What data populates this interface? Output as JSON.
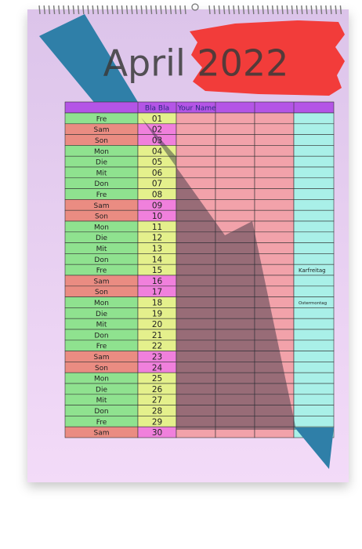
{
  "title": "April 2022",
  "table": {
    "header": [
      "Bla Bla",
      "Your Name"
    ],
    "rows": [
      {
        "day": "Fre",
        "date": "01"
      },
      {
        "day": "Sam",
        "date": "02",
        "weekend": true
      },
      {
        "day": "Son",
        "date": "03",
        "weekend": true
      },
      {
        "day": "Mon",
        "date": "04"
      },
      {
        "day": "Die",
        "date": "05"
      },
      {
        "day": "Mit",
        "date": "06"
      },
      {
        "day": "Don",
        "date": "07"
      },
      {
        "day": "Fre",
        "date": "08"
      },
      {
        "day": "Sam",
        "date": "09",
        "weekend": true
      },
      {
        "day": "Son",
        "date": "10",
        "weekend": true
      },
      {
        "day": "Mon",
        "date": "11"
      },
      {
        "day": "Die",
        "date": "12"
      },
      {
        "day": "Mit",
        "date": "13"
      },
      {
        "day": "Don",
        "date": "14"
      },
      {
        "day": "Fre",
        "date": "15",
        "note": "Karfreitag"
      },
      {
        "day": "Sam",
        "date": "16",
        "weekend": true
      },
      {
        "day": "Son",
        "date": "17",
        "weekend": true
      },
      {
        "day": "Mon",
        "date": "18",
        "note": "Ostermontag"
      },
      {
        "day": "Die",
        "date": "19"
      },
      {
        "day": "Mit",
        "date": "20"
      },
      {
        "day": "Don",
        "date": "21"
      },
      {
        "day": "Fre",
        "date": "22"
      },
      {
        "day": "Sam",
        "date": "23",
        "weekend": true
      },
      {
        "day": "Son",
        "date": "24",
        "weekend": true
      },
      {
        "day": "Mon",
        "date": "25"
      },
      {
        "day": "Die",
        "date": "26"
      },
      {
        "day": "Mit",
        "date": "27"
      },
      {
        "day": "Don",
        "date": "28"
      },
      {
        "day": "Fre",
        "date": "29"
      },
      {
        "day": "Sam",
        "date": "30",
        "weekend": true
      }
    ]
  }
}
